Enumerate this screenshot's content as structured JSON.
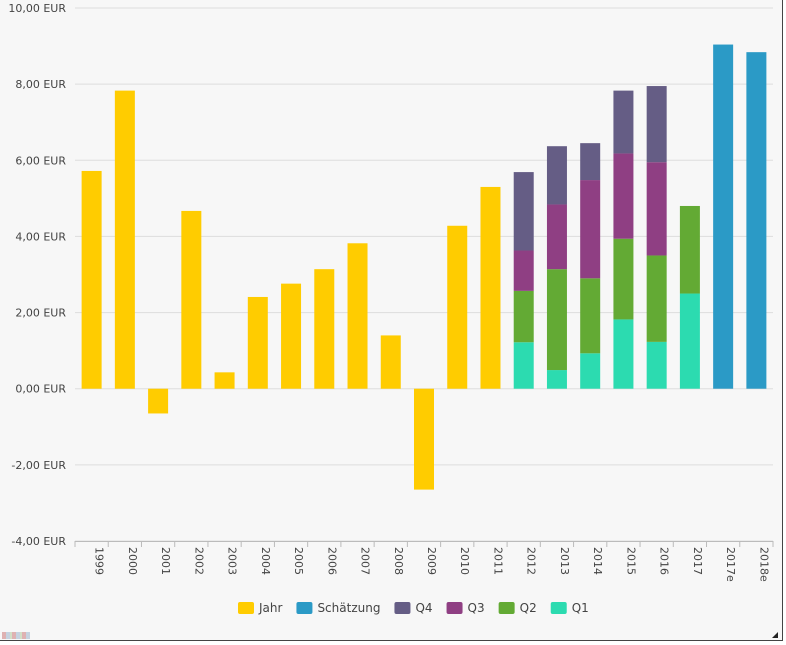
{
  "chart_data": {
    "type": "bar",
    "title": "",
    "xlabel": "",
    "ylabel": "",
    "ylim": [
      -4,
      10
    ],
    "y_ticks": [
      -4,
      -2,
      0,
      2,
      4,
      6,
      8,
      10
    ],
    "y_tick_labels": [
      "-4,00 EUR",
      "-2,00 EUR",
      "0,00 EUR",
      "2,00 EUR",
      "4,00 EUR",
      "6,00 EUR",
      "8,00 EUR",
      "10,00 EUR"
    ],
    "grid": true,
    "stacked": true,
    "legend_position": "bottom-center",
    "categories": [
      "1999",
      "2000",
      "2001",
      "2002",
      "2003",
      "2004",
      "2005",
      "2006",
      "2007",
      "2008",
      "2009",
      "2010",
      "2011",
      "2012",
      "2013",
      "2014",
      "2015",
      "2016",
      "2017",
      "2017e",
      "2018e"
    ],
    "series": [
      {
        "name": "Jahr",
        "color": "#ffcc00",
        "values": [
          5.72,
          7.83,
          -0.65,
          4.67,
          0.43,
          2.41,
          2.76,
          3.14,
          3.82,
          1.4,
          -2.65,
          4.28,
          5.3,
          null,
          null,
          null,
          null,
          null,
          null,
          null,
          null
        ]
      },
      {
        "name": "Schätzung",
        "color": "#2b9ac6",
        "values": [
          null,
          null,
          null,
          null,
          null,
          null,
          null,
          null,
          null,
          null,
          null,
          null,
          null,
          null,
          null,
          null,
          null,
          null,
          null,
          9.04,
          8.84
        ]
      },
      {
        "name": "Q4",
        "color": "#655d85",
        "values": [
          null,
          null,
          null,
          null,
          null,
          null,
          null,
          null,
          null,
          null,
          null,
          null,
          null,
          2.06,
          1.53,
          0.97,
          1.65,
          2.0,
          null,
          null,
          null
        ]
      },
      {
        "name": "Q3",
        "color": "#8f3f83",
        "values": [
          null,
          null,
          null,
          null,
          null,
          null,
          null,
          null,
          null,
          null,
          null,
          null,
          null,
          1.06,
          1.7,
          2.58,
          2.24,
          2.45,
          null,
          null,
          null
        ]
      },
      {
        "name": "Q2",
        "color": "#63aa34",
        "values": [
          null,
          null,
          null,
          null,
          null,
          null,
          null,
          null,
          null,
          null,
          null,
          null,
          null,
          1.35,
          2.65,
          1.97,
          2.12,
          2.27,
          2.3,
          null,
          null
        ]
      },
      {
        "name": "Q1",
        "color": "#2cdbb0",
        "values": [
          null,
          null,
          null,
          null,
          null,
          null,
          null,
          null,
          null,
          null,
          null,
          null,
          null,
          1.22,
          0.49,
          0.93,
          1.82,
          1.23,
          2.5,
          null,
          null
        ]
      }
    ]
  }
}
